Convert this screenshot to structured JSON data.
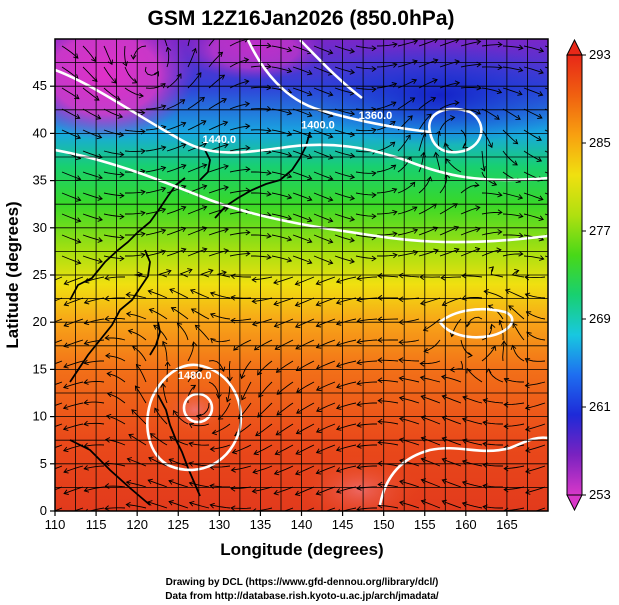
{
  "title": "GSM 12Z16Jan2026 (850.0hPa)",
  "xlabel": "Longitude (degrees)",
  "ylabel": "Latitude  (degrees)",
  "credits": {
    "line1": "Drawing by DCL (https://www.gfd-dennou.org/library/dcl/)",
    "line2": "Data from http://database.rish.kyoto-u.ac.jp/arch/jmadata/"
  },
  "map": {
    "lon_range": [
      110,
      170
    ],
    "lat_range": [
      0,
      50
    ],
    "lon_ticks": [
      "110",
      "115",
      "120",
      "125",
      "130",
      "135",
      "140",
      "145",
      "150",
      "155",
      "160",
      "165"
    ],
    "lat_ticks": [
      "0",
      "5",
      "10",
      "15",
      "20",
      "25",
      "30",
      "35",
      "40",
      "45"
    ],
    "grid": true,
    "contour_color": "#ffffff",
    "contour_labels": [
      {
        "text": "1400.0",
        "lon": 142,
        "lat": 40.5
      },
      {
        "text": "1360.0",
        "lon": 149,
        "lat": 41.5
      },
      {
        "text": "1440.0",
        "lon": 130,
        "lat": 39
      },
      {
        "text": "1480.0",
        "lon": 127,
        "lat": 14
      }
    ]
  },
  "colorbar": {
    "ticks": [
      "293",
      "285",
      "277",
      "269",
      "261",
      "253"
    ],
    "range": [
      253,
      293
    ],
    "colors": [
      "#d838c8",
      "#7a22c0",
      "#1e2ad8",
      "#1e6ef0",
      "#18c8e0",
      "#18d070",
      "#48d818",
      "#b0e010",
      "#f0e010",
      "#f8a010",
      "#f06010",
      "#e82818"
    ]
  }
}
